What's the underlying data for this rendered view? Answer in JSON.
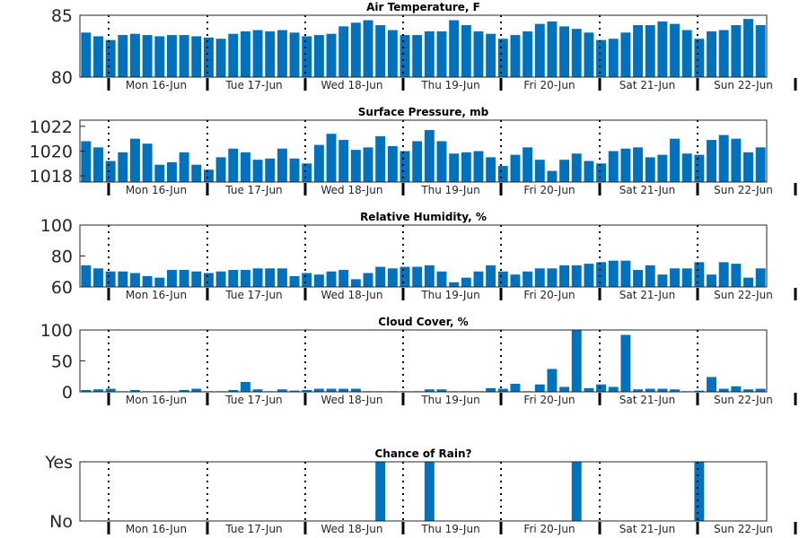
{
  "chart_data": [
    {
      "type": "bar",
      "title": "Air Temperature, F",
      "ylim": [
        80,
        85
      ],
      "yticks": [
        "80",
        "85"
      ],
      "day_labels": [
        "Mon 16-Jun",
        "Tue 17-Jun",
        "Wed 18-Jun",
        "Thu 19-Jun",
        "Fri 20-Jun",
        "Sat 21-Jun",
        "Sun 22-Jun"
      ],
      "bar_color": "#0072BD",
      "values": [
        83.6,
        83.3,
        83.0,
        83.4,
        83.5,
        83.4,
        83.3,
        83.4,
        83.4,
        83.3,
        83.2,
        83.1,
        83.5,
        83.7,
        83.8,
        83.7,
        83.8,
        83.6,
        83.3,
        83.4,
        83.5,
        84.1,
        84.4,
        84.6,
        84.2,
        83.8,
        83.4,
        83.4,
        83.7,
        83.7,
        84.6,
        84.2,
        83.7,
        83.5,
        83.1,
        83.4,
        83.7,
        84.3,
        84.5,
        84.1,
        83.9,
        83.6,
        83.0,
        83.1,
        83.6,
        84.2,
        84.2,
        84.5,
        84.3,
        83.8,
        83.1,
        83.7,
        83.8,
        84.2,
        84.7,
        84.2
      ]
    },
    {
      "type": "bar",
      "title": "Surface Pressure, mb",
      "ylim": [
        1017.5,
        1022.5
      ],
      "yticks": [
        "1018",
        "1020",
        "1022"
      ],
      "day_labels": [
        "Mon 16-Jun",
        "Tue 17-Jun",
        "Wed 18-Jun",
        "Thu 19-Jun",
        "Fri 20-Jun",
        "Sat 21-Jun",
        "Sun 22-Jun"
      ],
      "bar_color": "#0072BD",
      "values": [
        1020.8,
        1020.3,
        1019.2,
        1019.9,
        1021.0,
        1020.6,
        1018.9,
        1019.1,
        1019.9,
        1018.9,
        1018.5,
        1019.5,
        1020.2,
        1019.9,
        1019.3,
        1019.4,
        1020.2,
        1019.4,
        1019.0,
        1020.5,
        1021.4,
        1020.9,
        1020.1,
        1020.3,
        1021.2,
        1020.4,
        1020.0,
        1020.8,
        1021.7,
        1020.8,
        1019.8,
        1019.9,
        1020.0,
        1019.5,
        1018.8,
        1019.7,
        1020.3,
        1019.3,
        1018.4,
        1019.3,
        1019.8,
        1019.2,
        1019.0,
        1020.0,
        1020.2,
        1020.3,
        1019.5,
        1019.7,
        1021.0,
        1019.8,
        1019.7,
        1020.9,
        1021.3,
        1021.0,
        1019.9,
        1020.3
      ]
    },
    {
      "type": "bar",
      "title": "Relative Humidity, %",
      "ylim": [
        60,
        100
      ],
      "yticks": [
        "60",
        "80",
        "100"
      ],
      "day_labels": [
        "Mon 16-Jun",
        "Tue 17-Jun",
        "Wed 18-Jun",
        "Thu 19-Jun",
        "Fri 20-Jun",
        "Sat 21-Jun",
        "Sun 22-Jun"
      ],
      "bar_color": "#0072BD",
      "values": [
        74,
        72,
        70,
        70,
        69,
        67,
        66,
        71,
        71,
        70,
        69,
        70,
        71,
        71,
        72,
        72,
        72,
        67,
        69,
        68,
        70,
        71,
        65,
        69,
        73,
        72,
        73,
        73,
        74,
        70,
        63,
        66,
        70,
        74,
        70,
        68,
        70,
        72,
        72,
        74,
        74,
        75,
        76,
        77,
        77,
        71,
        74,
        68,
        72,
        72,
        76,
        68,
        76,
        75,
        66,
        72
      ]
    },
    {
      "type": "bar",
      "title": "Cloud Cover, %",
      "ylim": [
        0,
        100
      ],
      "yticks": [
        "0",
        "50",
        "100"
      ],
      "day_labels": [
        "Mon 16-Jun",
        "Tue 17-Jun",
        "Wed 18-Jun",
        "Thu 19-Jun",
        "Fri 20-Jun",
        "Sat 21-Jun",
        "Sun 22-Jun"
      ],
      "bar_color": "#0072BD",
      "values": [
        3,
        4,
        5,
        1,
        3,
        1,
        1,
        1,
        3,
        5,
        1,
        1,
        3,
        16,
        4,
        1,
        4,
        2,
        3,
        5,
        5,
        5,
        5,
        1,
        1,
        1,
        1,
        1,
        4,
        4,
        1,
        1,
        1,
        6,
        5,
        13,
        1,
        12,
        37,
        8,
        100,
        6,
        12,
        8,
        92,
        4,
        5,
        5,
        4,
        1,
        2,
        24,
        5,
        9,
        4,
        5
      ]
    },
    {
      "type": "bar",
      "title": "Chance of Rain?",
      "ylim": [
        0,
        1
      ],
      "yticks": [
        "No",
        "Yes"
      ],
      "day_labels": [
        "Mon 16-Jun",
        "Tue 17-Jun",
        "Wed 18-Jun",
        "Thu 19-Jun",
        "Fri 20-Jun",
        "Sat 21-Jun",
        "Sun 22-Jun"
      ],
      "bar_color": "#0072BD",
      "values": [
        0,
        0,
        0,
        0,
        0,
        0,
        0,
        0,
        0,
        0,
        0,
        0,
        0,
        0,
        0,
        0,
        0,
        0,
        0,
        0,
        0,
        0,
        0,
        0,
        1,
        0,
        0,
        0,
        1,
        0,
        0,
        0,
        0,
        0,
        0,
        0,
        0,
        0,
        0,
        0,
        1,
        0,
        0,
        0,
        0,
        0,
        0,
        0,
        0,
        0,
        1,
        0,
        0,
        0,
        0,
        0
      ]
    }
  ]
}
